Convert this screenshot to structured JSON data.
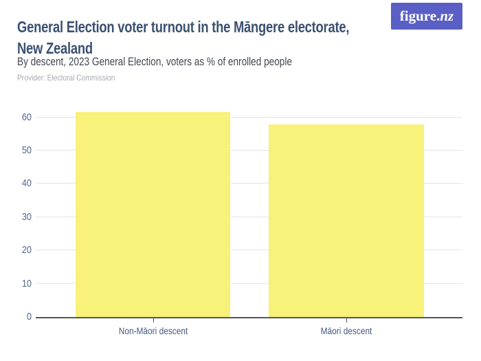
{
  "header": {
    "title_line1": "General Election voter turnout in the Māngere electorate,",
    "title_line2": "New Zealand",
    "subtitle": "By descent, 2023 General Election, voters as % of enrolled people",
    "provider": "Provider: Electoral Commission",
    "logo": {
      "text_regular": "figure.",
      "text_italic": "nz"
    }
  },
  "colors": {
    "title": "#3A5170",
    "subtitle": "#42474F",
    "provider": "#A6A9AE",
    "logo_bg": "#5A5FC5",
    "bar": "#F8F17A",
    "gridline": "#E3E4E8",
    "axis_line": "#55565A",
    "y_tick_label": "#56678A",
    "category_label": "#46587E"
  },
  "chart_data": {
    "type": "bar",
    "title": "General Election voter turnout in the Māngere electorate, New Zealand",
    "subtitle": "By descent, 2023 General Election, voters as % of enrolled people",
    "source": "Provider: Electoral Commission",
    "categories": [
      "Non-Māori descent",
      "Māori descent"
    ],
    "values": [
      61.6,
      57.9
    ],
    "unit": "voters as % of enrolled people",
    "xlabel": "",
    "ylabel": "",
    "ylim": [
      0,
      64
    ],
    "yticks": [
      0,
      10,
      20,
      30,
      40,
      50,
      60
    ],
    "grid": true,
    "legend_position": "none",
    "bar_color": "#F8F17A"
  }
}
